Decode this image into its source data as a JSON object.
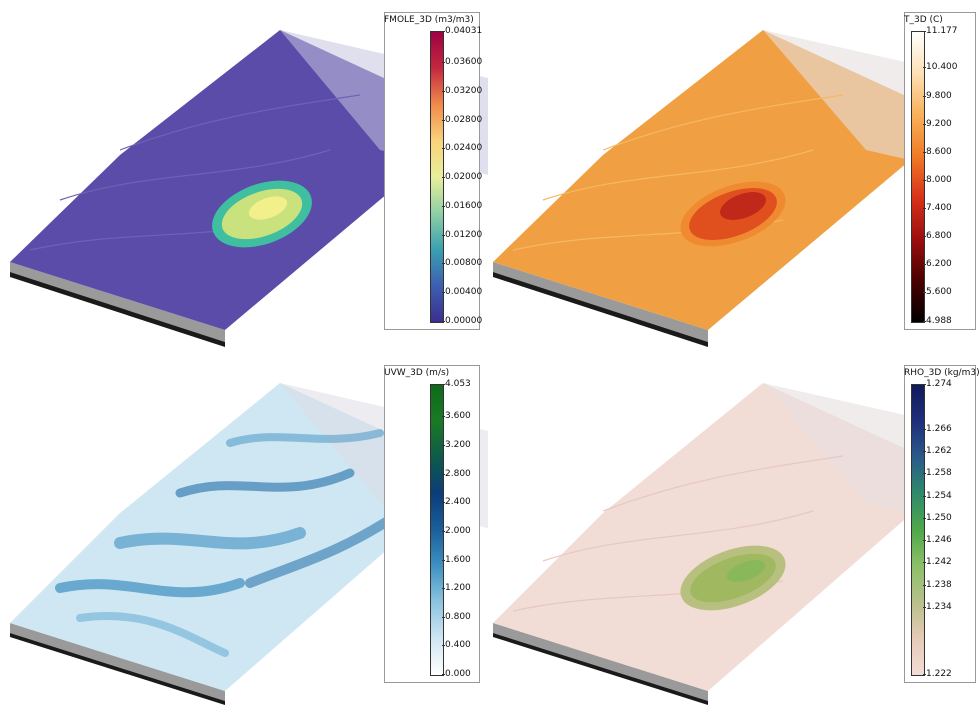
{
  "panels": [
    {
      "id": "fmole",
      "colorbar": {
        "title": "FMOLE_3D (m3/m3)",
        "ticks": [
          "0.04031",
          "0.03600",
          "0.03200",
          "0.02800",
          "0.02400",
          "0.02000",
          "0.01600",
          "0.01200",
          "0.00800",
          "0.00400",
          "0.00000"
        ],
        "tick_values": [
          0.04031,
          0.036,
          0.032,
          0.028,
          0.024,
          0.02,
          0.016,
          0.012,
          0.008,
          0.004,
          0.0
        ],
        "min": 0.0,
        "max": 0.04031,
        "colors": [
          "#3b2f8e",
          "#3d5fb0",
          "#3aa0b0",
          "#8fd0a4",
          "#e8ef9c",
          "#f8d37a",
          "#f08a4b",
          "#c4283f",
          "#9e0142"
        ]
      },
      "surface": {
        "base_color": "#5a4ca8",
        "plume_colors": [
          "#3fbfa0",
          "#c9e27e",
          "#f2f08a"
        ]
      }
    },
    {
      "id": "temperature",
      "colorbar": {
        "title": "T_3D (C)",
        "ticks": [
          "11.177",
          "10.400",
          "9.800",
          "9.200",
          "8.600",
          "8.000",
          "7.400",
          "6.800",
          "6.200",
          "5.600",
          "4.988"
        ],
        "tick_values": [
          11.177,
          10.4,
          9.8,
          9.2,
          8.6,
          8.0,
          7.4,
          6.8,
          6.2,
          5.6,
          4.988
        ],
        "min": 4.988,
        "max": 11.177,
        "colors": [
          "#000000",
          "#4a0000",
          "#9c0e0e",
          "#d8321a",
          "#f07a26",
          "#f8b15a",
          "#fde0b4",
          "#ffffff"
        ]
      },
      "surface": {
        "base_color": "#f0a042",
        "plume_colors": [
          "#c0281a",
          "#e0501f",
          "#f08a30"
        ]
      }
    },
    {
      "id": "velocity",
      "colorbar": {
        "title": "UVW_3D (m/s)",
        "ticks": [
          "4.053",
          "3.600",
          "3.200",
          "2.800",
          "2.400",
          "2.000",
          "1.600",
          "1.200",
          "0.800",
          "0.400",
          "0.000"
        ],
        "tick_values": [
          4.053,
          3.6,
          3.2,
          2.8,
          2.4,
          2.0,
          1.6,
          1.2,
          0.8,
          0.4,
          0.0
        ],
        "min": 0.0,
        "max": 4.053,
        "colors": [
          "#ffffff",
          "#cfe6f2",
          "#8cc4df",
          "#3f92c2",
          "#1a5f9c",
          "#0b3d7a",
          "#0e5a4a",
          "#1a7a24",
          "#0e6a1a"
        ]
      },
      "surface": {
        "base_color": "#cfe7f3",
        "plume_colors": [
          "#3d8fc0",
          "#7ab8da",
          "#ffffff"
        ]
      }
    },
    {
      "id": "density",
      "colorbar": {
        "title": "RHO_3D (kg/m3)",
        "ticks": [
          "1.274",
          "1.266",
          "1.262",
          "1.258",
          "1.254",
          "1.250",
          "1.246",
          "1.242",
          "1.238",
          "1.234",
          "1.222"
        ],
        "tick_values": [
          1.274,
          1.266,
          1.262,
          1.258,
          1.254,
          1.25,
          1.246,
          1.242,
          1.238,
          1.234,
          1.222
        ],
        "min": 1.222,
        "max": 1.274,
        "colors": [
          "#f3dbd6",
          "#e6cbb8",
          "#b8c08a",
          "#8cc06a",
          "#4fa84a",
          "#2f8a6a",
          "#2b5a8a",
          "#1f2f7a",
          "#0f1a5a"
        ]
      },
      "surface": {
        "base_color": "#f2dcd6",
        "plume_colors": [
          "#a0b860",
          "#88b85a",
          "#b8c080"
        ]
      }
    }
  ]
}
